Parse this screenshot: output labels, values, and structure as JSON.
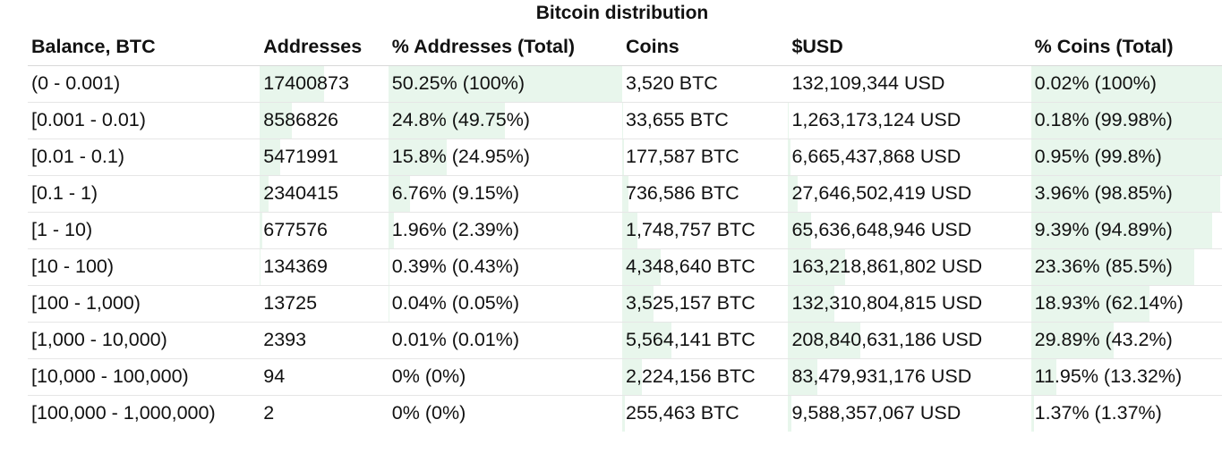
{
  "chart_data": {
    "type": "table",
    "title": "Bitcoin distribution",
    "columns": [
      "Balance, BTC",
      "Addresses",
      "% Addresses (Total)",
      "Coins",
      "$USD",
      "% Coins (Total)"
    ],
    "rows": [
      {
        "balance": "(0 - 0.001)",
        "addresses": "17400873",
        "pct_addresses": "50.25% (100%)",
        "coins": "3,520 BTC",
        "usd": "132,109,344 USD",
        "pct_coins": "0.02% (100%)",
        "addr_share": 50.25,
        "addr_cum": 100,
        "coin_share": 0.02,
        "coin_cum": 100
      },
      {
        "balance": "[0.001 - 0.01)",
        "addresses": "8586826",
        "pct_addresses": "24.8% (49.75%)",
        "coins": "33,655 BTC",
        "usd": "1,263,173,124 USD",
        "pct_coins": "0.18% (99.98%)",
        "addr_share": 24.8,
        "addr_cum": 49.75,
        "coin_share": 0.18,
        "coin_cum": 99.98
      },
      {
        "balance": "[0.01 - 0.1)",
        "addresses": "5471991",
        "pct_addresses": "15.8% (24.95%)",
        "coins": "177,587 BTC",
        "usd": "6,665,437,868 USD",
        "pct_coins": "0.95% (99.8%)",
        "addr_share": 15.8,
        "addr_cum": 24.95,
        "coin_share": 0.95,
        "coin_cum": 99.8
      },
      {
        "balance": "[0.1 - 1)",
        "addresses": "2340415",
        "pct_addresses": "6.76% (9.15%)",
        "coins": "736,586 BTC",
        "usd": "27,646,502,419 USD",
        "pct_coins": "3.96% (98.85%)",
        "addr_share": 6.76,
        "addr_cum": 9.15,
        "coin_share": 3.96,
        "coin_cum": 98.85
      },
      {
        "balance": "[1 - 10)",
        "addresses": "677576",
        "pct_addresses": "1.96% (2.39%)",
        "coins": "1,748,757 BTC",
        "usd": "65,636,648,946 USD",
        "pct_coins": "9.39% (94.89%)",
        "addr_share": 1.96,
        "addr_cum": 2.39,
        "coin_share": 9.39,
        "coin_cum": 94.89
      },
      {
        "balance": "[10 - 100)",
        "addresses": "134369",
        "pct_addresses": "0.39% (0.43%)",
        "coins": "4,348,640 BTC",
        "usd": "163,218,861,802 USD",
        "pct_coins": "23.36% (85.5%)",
        "addr_share": 0.39,
        "addr_cum": 0.43,
        "coin_share": 23.36,
        "coin_cum": 85.5
      },
      {
        "balance": "[100 - 1,000)",
        "addresses": "13725",
        "pct_addresses": "0.04% (0.05%)",
        "coins": "3,525,157 BTC",
        "usd": "132,310,804,815 USD",
        "pct_coins": "18.93% (62.14%)",
        "addr_share": 0.04,
        "addr_cum": 0.05,
        "coin_share": 18.93,
        "coin_cum": 62.14
      },
      {
        "balance": "[1,000 - 10,000)",
        "addresses": "2393",
        "pct_addresses": "0.01% (0.01%)",
        "coins": "5,564,141 BTC",
        "usd": "208,840,631,186 USD",
        "pct_coins": "29.89% (43.2%)",
        "addr_share": 0.01,
        "addr_cum": 0.01,
        "coin_share": 29.89,
        "coin_cum": 43.2
      },
      {
        "balance": "[10,000 - 100,000)",
        "addresses": "94",
        "pct_addresses": "0% (0%)",
        "coins": "2,224,156 BTC",
        "usd": "83,479,931,176 USD",
        "pct_coins": "11.95% (13.32%)",
        "addr_share": 0,
        "addr_cum": 0,
        "coin_share": 11.95,
        "coin_cum": 13.32
      },
      {
        "balance": "[100,000 - 1,000,000)",
        "addresses": "2",
        "pct_addresses": "0% (0%)",
        "coins": "255,463 BTC",
        "usd": "9,588,357,067 USD",
        "pct_coins": "1.37% (1.37%)",
        "addr_share": 0,
        "addr_cum": 0,
        "coin_share": 1.37,
        "coin_cum": 1.37
      }
    ],
    "colors": {
      "bar_fill": "#e8f6ec",
      "text": "#111111",
      "row_divider": "#e6e6e6"
    }
  }
}
